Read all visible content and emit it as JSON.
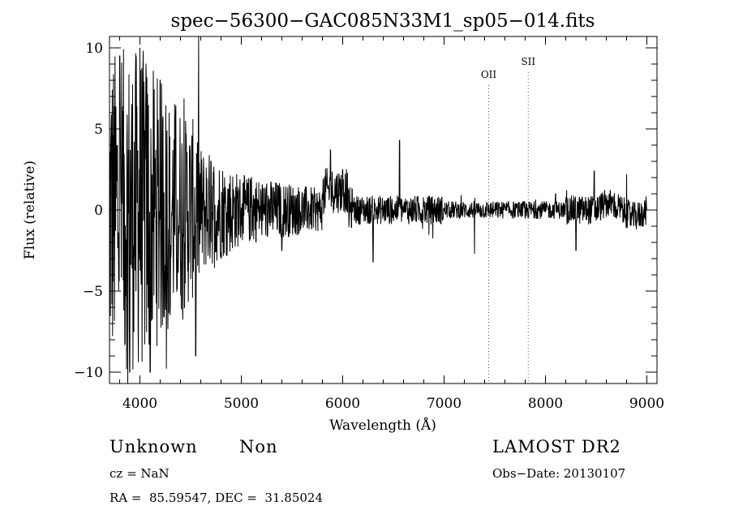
{
  "chart_data": {
    "type": "line",
    "title": "spec−56300−GAC085N33M1_sp05−014.fits",
    "xlabel": "Wavelength (Å)",
    "ylabel": "Flux (relative)",
    "xlim": [
      3700,
      9100
    ],
    "ylim": [
      -10.7,
      10.7
    ],
    "x_ticks": [
      4000,
      5000,
      6000,
      7000,
      8000,
      9000
    ],
    "x_tick_labels": [
      "4000",
      "5000",
      "6000",
      "7000",
      "8000",
      "9000"
    ],
    "y_ticks": [
      -10,
      -5,
      0,
      5,
      10
    ],
    "y_tick_labels": [
      "−10",
      "−5",
      "0",
      "5",
      "10"
    ],
    "grid": false,
    "series": [
      {
        "wavelength_range": [
          3700,
          9000
        ],
        "envelope_description_points": [
          {
            "x": 3800,
            "y": 9.5
          },
          {
            "x": 3900,
            "y": -10.0
          },
          {
            "x": 4000,
            "y": 10.0
          },
          {
            "x": 4100,
            "y": -10.0
          },
          {
            "x": 4200,
            "y": 8.0
          },
          {
            "x": 4300,
            "y": -6.0
          },
          {
            "x": 4450,
            "y": 5.5
          },
          {
            "x": 4550,
            "y": -9.0
          },
          {
            "x": 4700,
            "y": 3.0
          },
          {
            "x": 4900,
            "y": -2.0
          },
          {
            "x": 5100,
            "y": 2.0
          },
          {
            "x": 5400,
            "y": -2.5
          },
          {
            "x": 5700,
            "y": 1.0
          },
          {
            "x": 5880,
            "y": 3.7
          },
          {
            "x": 6000,
            "y": 2.5
          },
          {
            "x": 6100,
            "y": 0.0
          },
          {
            "x": 6300,
            "y": -3.2
          },
          {
            "x": 6560,
            "y": 4.3
          },
          {
            "x": 6800,
            "y": 0.2
          },
          {
            "x": 7000,
            "y": 0.0
          },
          {
            "x": 7300,
            "y": -2.7
          },
          {
            "x": 7500,
            "y": 0.0
          },
          {
            "x": 7800,
            "y": -0.5
          },
          {
            "x": 8100,
            "y": 1.0
          },
          {
            "x": 8300,
            "y": -2.5
          },
          {
            "x": 8480,
            "y": 2.4
          },
          {
            "x": 8700,
            "y": -0.5
          },
          {
            "x": 8800,
            "y": 2.2
          },
          {
            "x": 9000,
            "y": 0.0
          }
        ]
      }
    ],
    "annotations": [
      {
        "label": "OII",
        "x": 7440,
        "y_top": 8.2,
        "line_style": "dotted"
      },
      {
        "label": "SII",
        "x": 7830,
        "y_top": 9.0,
        "line_style": "dotted"
      }
    ]
  },
  "info": {
    "class_label": "Unknown",
    "subclass_label": "Non",
    "survey_label": "LAMOST DR2",
    "cz_text": "cz = NaN",
    "obs_date_text": "Obs−Date: 20130107",
    "coords_text": "RA =  85.59547, DEC =  31.85024"
  }
}
